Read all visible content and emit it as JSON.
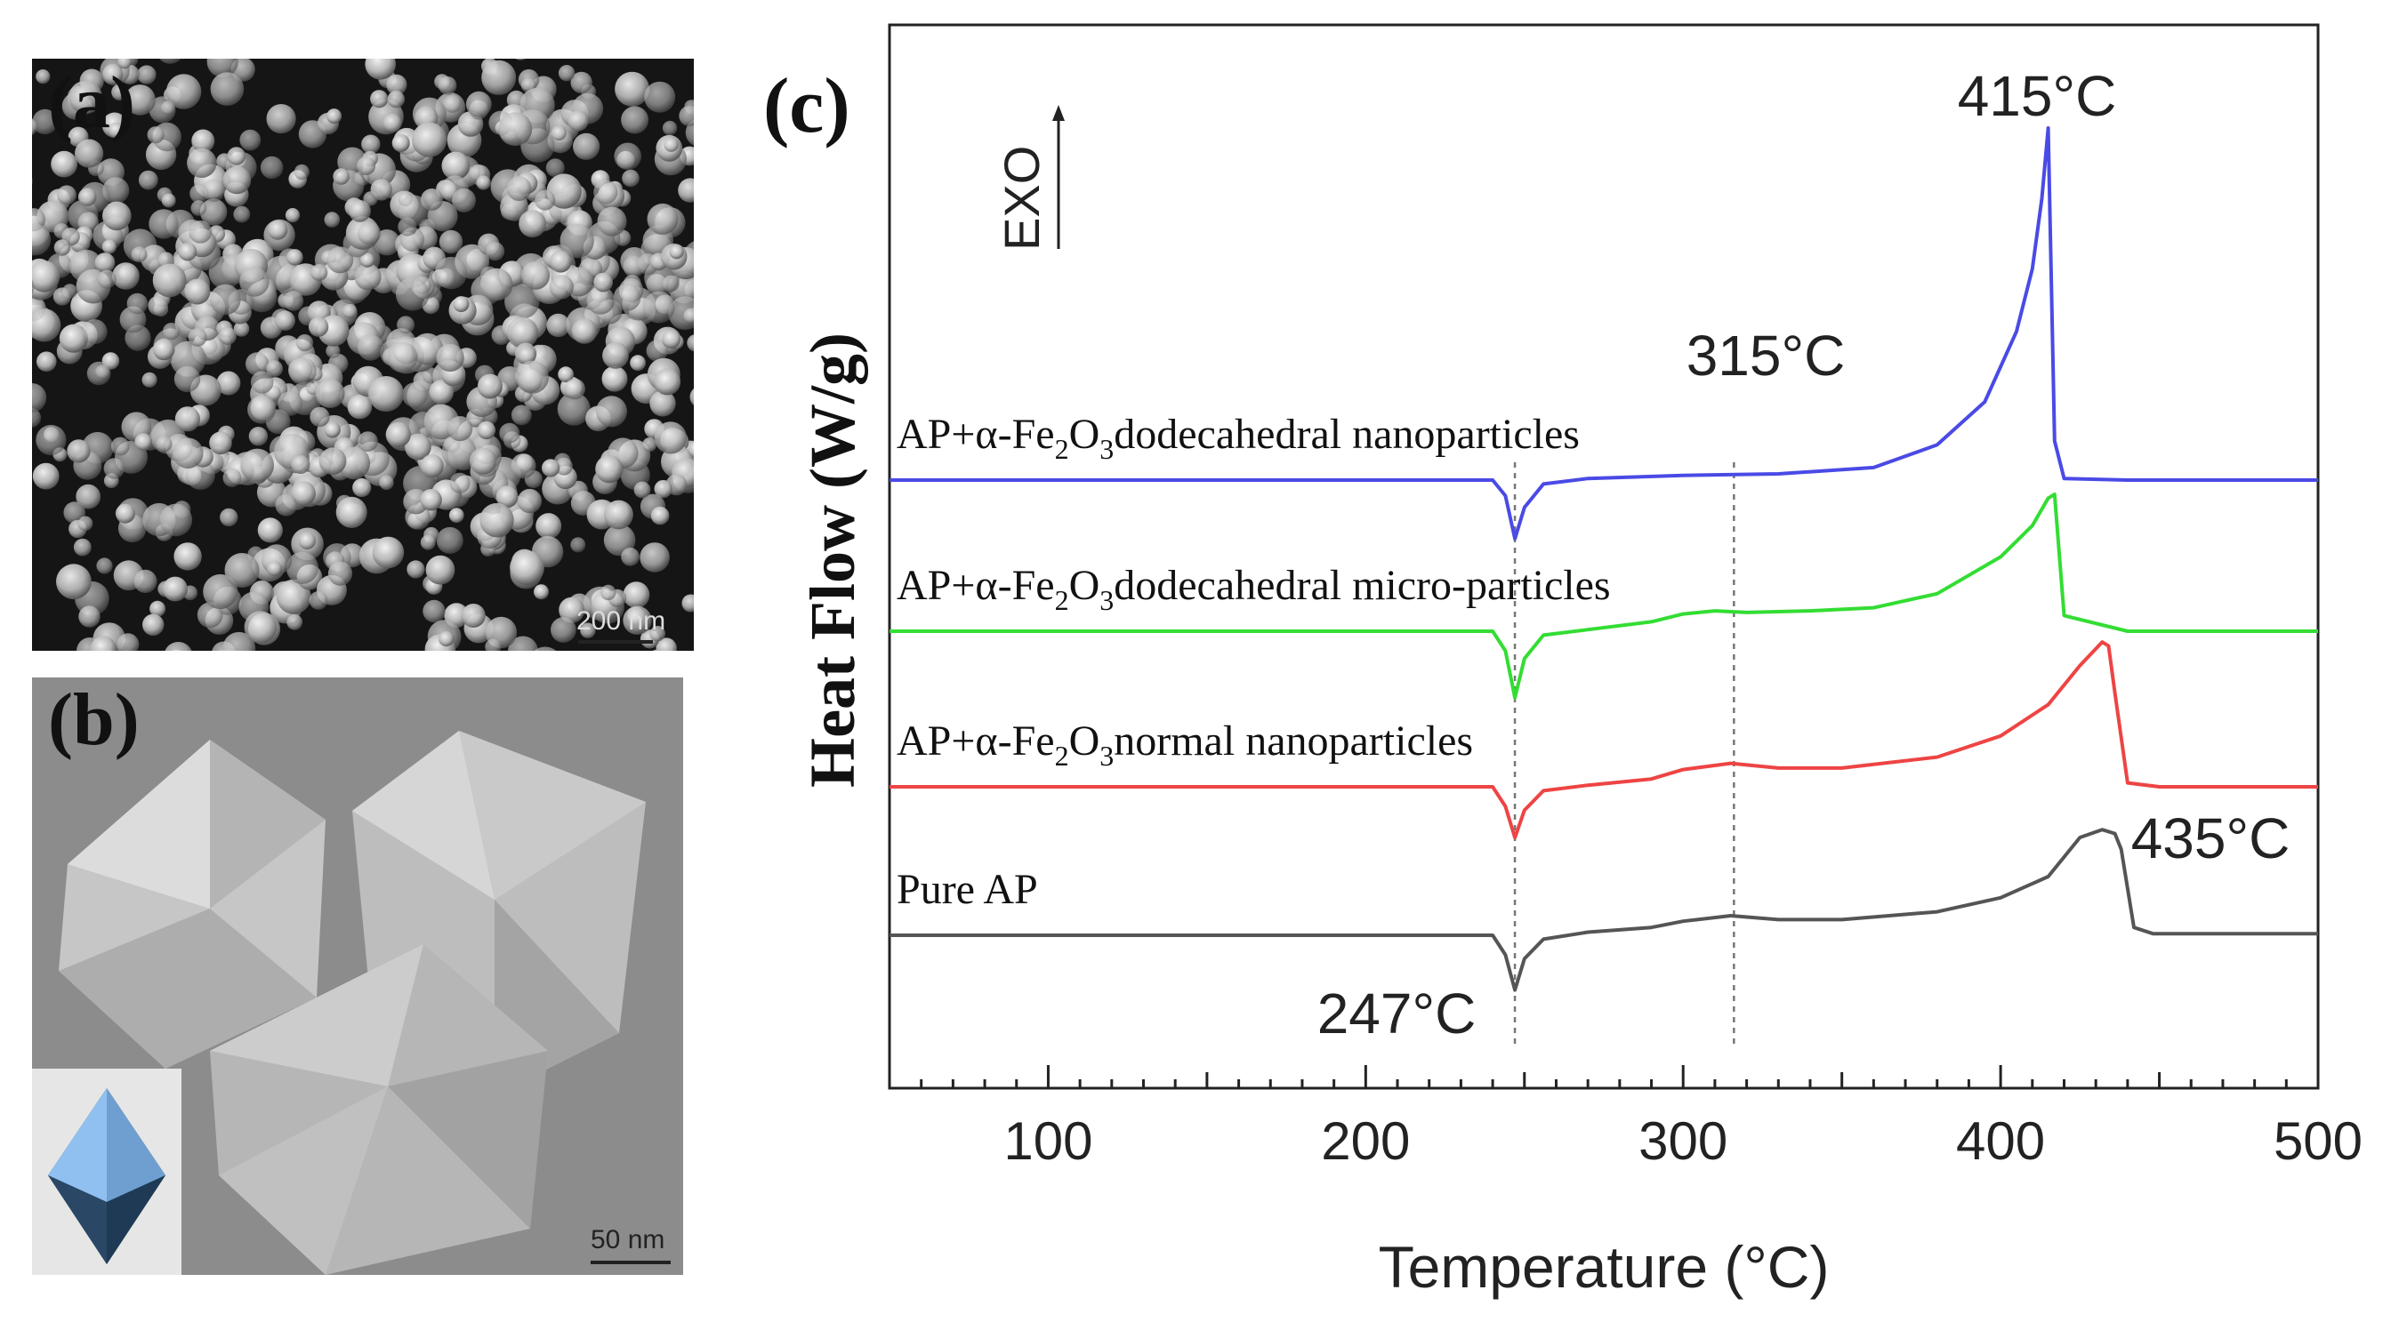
{
  "panels": {
    "a": {
      "label": "(a)",
      "scale_text": "200 nm"
    },
    "b": {
      "label": "(b)",
      "scale_text": "50 nm"
    },
    "c": {
      "label": "(c)"
    }
  },
  "chart_data": {
    "type": "line",
    "xlabel": "Temperature (°C)",
    "ylabel": "Heat Flow (W/g)",
    "xlim": [
      50,
      500
    ],
    "xticks": [
      100,
      200,
      300,
      400,
      500
    ],
    "exo_label": "EXO",
    "annotations": [
      {
        "text": "415°C",
        "x": 415
      },
      {
        "text": "315°C",
        "x": 315
      },
      {
        "text": "435°C",
        "x": 435
      },
      {
        "text": "247°C",
        "x": 247
      }
    ],
    "reference_lines": [
      247,
      316
    ],
    "series": [
      {
        "name": "AP+α-Fe2O3dodecahedral nanoparticles",
        "label_parts": [
          "AP+α-Fe",
          "2",
          "O",
          "3",
          "dodecahedral nanoparticles"
        ],
        "color": "#4a4ae6",
        "x": [
          50,
          200,
          240,
          244,
          247,
          250,
          256,
          270,
          300,
          330,
          360,
          380,
          395,
          405,
          410,
          413,
          415,
          417,
          420,
          440,
          500
        ],
        "y": [
          0,
          0,
          0,
          -0.2,
          -0.75,
          -0.35,
          -0.05,
          0.02,
          0.06,
          0.08,
          0.16,
          0.45,
          1.0,
          1.9,
          2.7,
          3.6,
          4.5,
          0.5,
          0.02,
          0,
          0
        ]
      },
      {
        "name": "AP+α-Fe2O3dodecahedral micro-particles",
        "label_parts": [
          "AP+α-Fe",
          "2",
          "O",
          "3",
          "dodecahedral micro-particles"
        ],
        "color": "#33dd33",
        "x": [
          50,
          200,
          240,
          244,
          247,
          250,
          256,
          270,
          290,
          300,
          310,
          320,
          340,
          360,
          380,
          400,
          410,
          415,
          417,
          420,
          440,
          500
        ],
        "y": [
          0,
          0,
          0,
          -0.25,
          -0.85,
          -0.35,
          -0.05,
          0.02,
          0.12,
          0.22,
          0.26,
          0.24,
          0.26,
          0.3,
          0.48,
          0.95,
          1.35,
          1.7,
          1.75,
          0.2,
          0,
          0
        ]
      },
      {
        "name": "AP+α-Fe2O3normal nanoparticles",
        "label_parts": [
          "AP+α-Fe",
          "2",
          "O",
          "3",
          "normal nanoparticles"
        ],
        "color": "#ee4444",
        "x": [
          50,
          200,
          240,
          244,
          247,
          250,
          256,
          270,
          290,
          300,
          315,
          330,
          350,
          380,
          400,
          415,
          425,
          432,
          434,
          436,
          440,
          450,
          500
        ],
        "y": [
          0,
          0,
          0,
          -0.25,
          -0.65,
          -0.3,
          -0.05,
          0.02,
          0.1,
          0.22,
          0.3,
          0.24,
          0.24,
          0.38,
          0.65,
          1.05,
          1.55,
          1.85,
          1.8,
          1.2,
          0.05,
          0,
          0
        ]
      },
      {
        "name": "Pure AP",
        "label_parts": [
          "Pure AP"
        ],
        "color": "#555555",
        "x": [
          50,
          200,
          240,
          244,
          247,
          250,
          256,
          270,
          290,
          300,
          315,
          330,
          350,
          380,
          400,
          415,
          425,
          432,
          436,
          438,
          442,
          448,
          500
        ],
        "y": [
          0,
          0,
          0,
          -0.25,
          -0.7,
          -0.3,
          -0.05,
          0.04,
          0.1,
          0.18,
          0.25,
          0.2,
          0.2,
          0.3,
          0.48,
          0.75,
          1.25,
          1.35,
          1.3,
          1.1,
          0.1,
          0.02,
          0.02
        ]
      }
    ]
  }
}
